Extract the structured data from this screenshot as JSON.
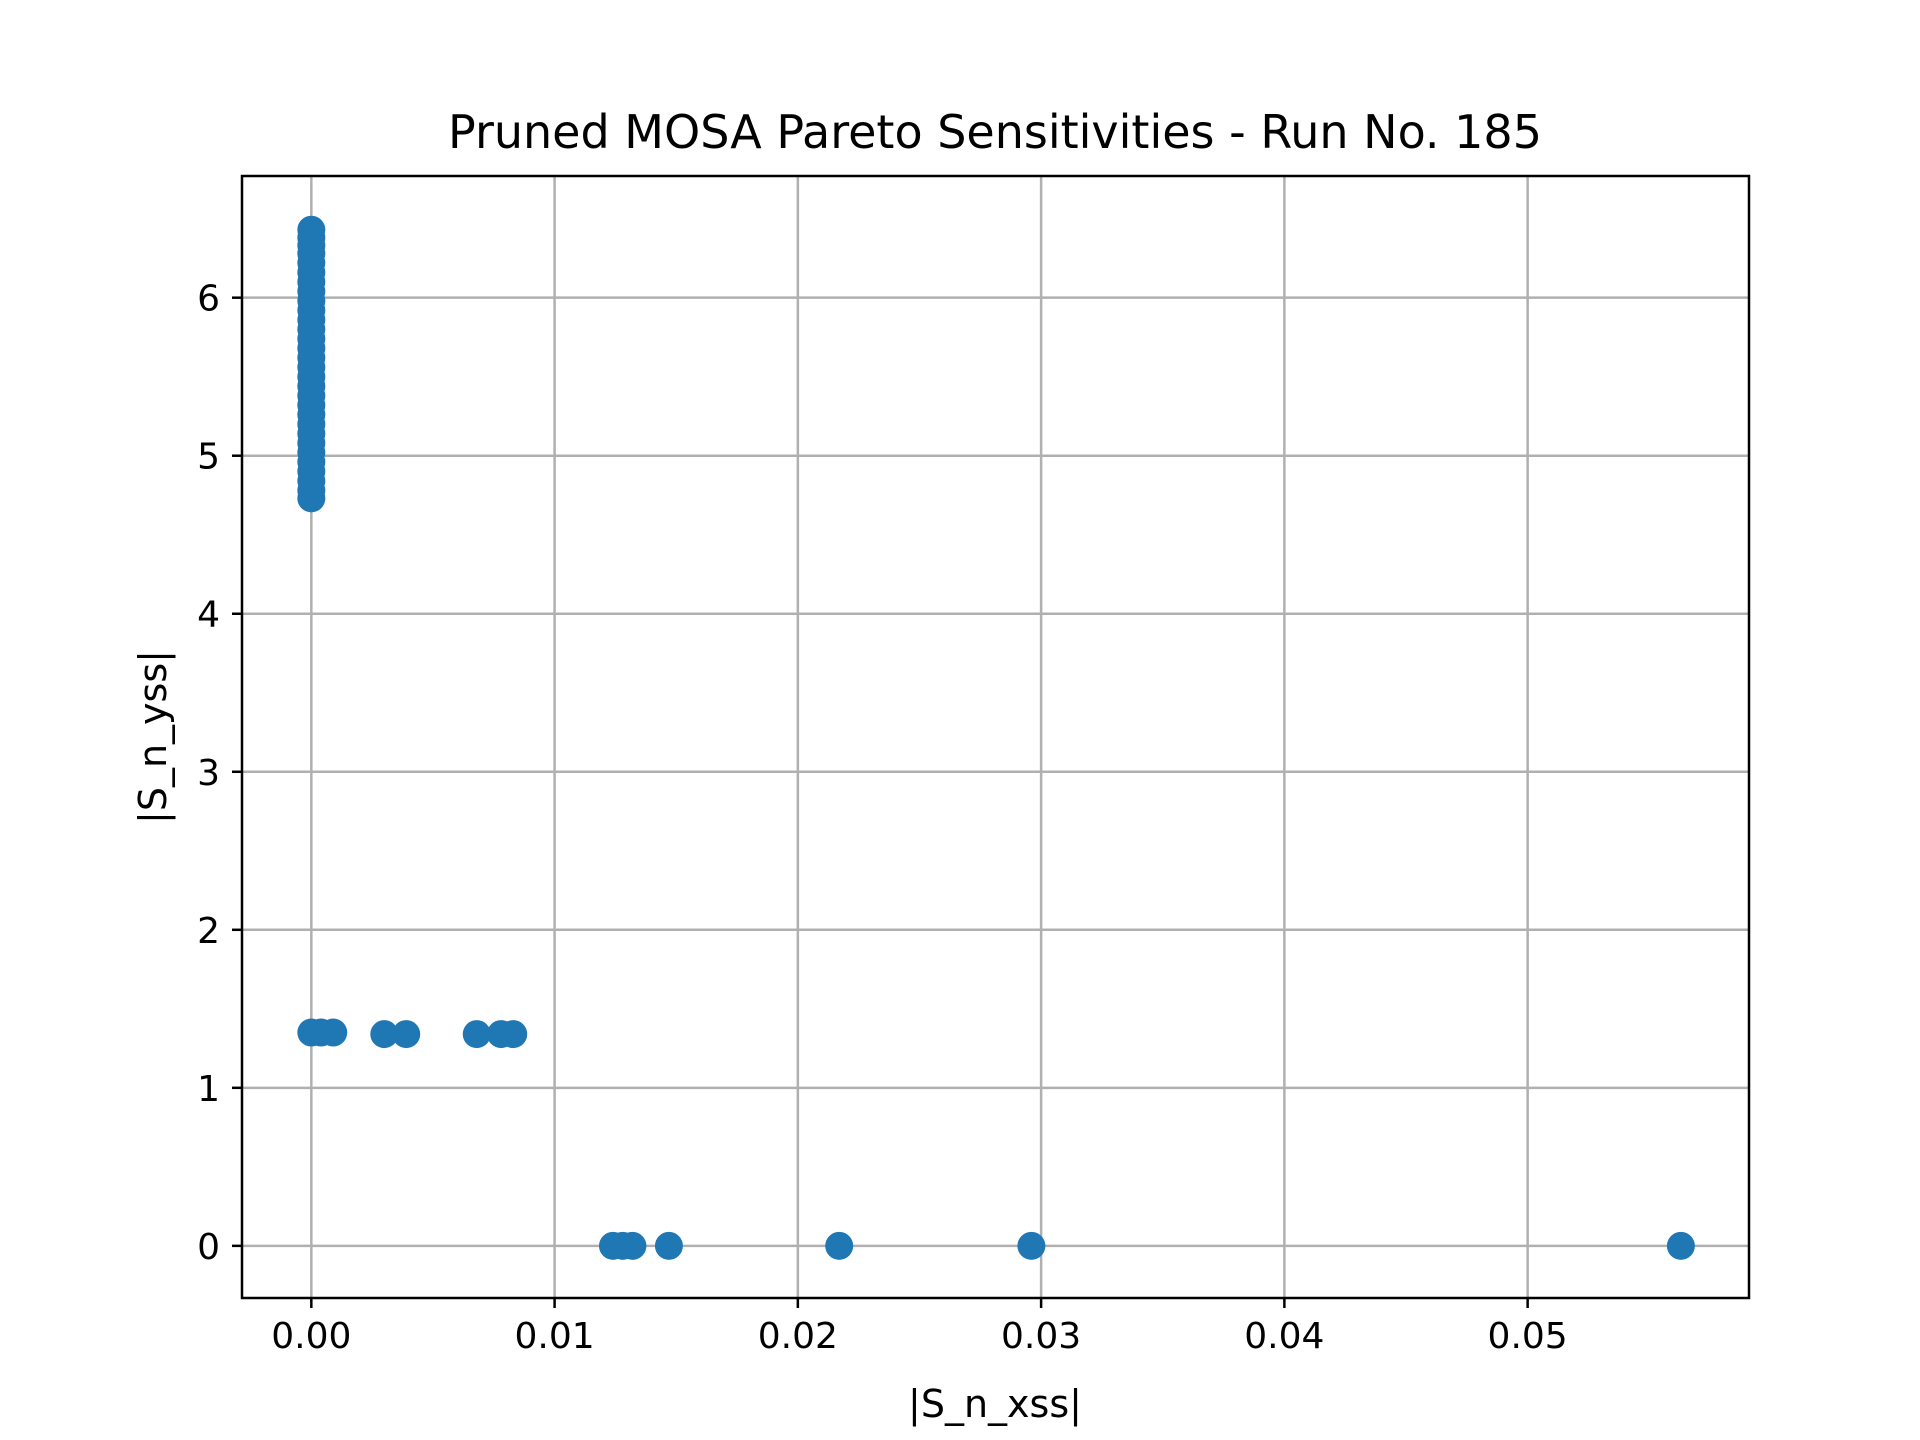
{
  "chart_data": {
    "type": "scatter",
    "title": "Pruned MOSA Pareto Sensitivities - Run No. 185",
    "xlabel": "|S_n_xss|",
    "ylabel": "|S_n_yss|",
    "xlim": [
      -0.00285,
      0.0591
    ],
    "ylim": [
      -0.33,
      6.77
    ],
    "xticks": [
      0.0,
      0.01,
      0.02,
      0.03,
      0.04,
      0.05
    ],
    "xtick_labels": [
      "0.00",
      "0.01",
      "0.02",
      "0.03",
      "0.04",
      "0.05"
    ],
    "yticks": [
      0,
      1,
      2,
      3,
      4,
      5,
      6
    ],
    "ytick_labels": [
      "0",
      "1",
      "2",
      "3",
      "4",
      "5",
      "6"
    ],
    "grid": true,
    "color": "#1f77b4",
    "points": [
      {
        "x": 0.0,
        "y": 6.43
      },
      {
        "x": 0.0,
        "y": 6.38
      },
      {
        "x": 0.0,
        "y": 6.33
      },
      {
        "x": 0.0,
        "y": 6.28
      },
      {
        "x": 0.0,
        "y": 6.22
      },
      {
        "x": 0.0,
        "y": 6.16
      },
      {
        "x": 0.0,
        "y": 6.1
      },
      {
        "x": 0.0,
        "y": 6.04
      },
      {
        "x": 0.0,
        "y": 5.98
      },
      {
        "x": 0.0,
        "y": 5.92
      },
      {
        "x": 0.0,
        "y": 5.86
      },
      {
        "x": 0.0,
        "y": 5.8
      },
      {
        "x": 0.0,
        "y": 5.74
      },
      {
        "x": 0.0,
        "y": 5.68
      },
      {
        "x": 0.0,
        "y": 5.62
      },
      {
        "x": 0.0,
        "y": 5.56
      },
      {
        "x": 0.0,
        "y": 5.5
      },
      {
        "x": 0.0,
        "y": 5.44
      },
      {
        "x": 0.0,
        "y": 5.38
      },
      {
        "x": 0.0,
        "y": 5.32
      },
      {
        "x": 0.0,
        "y": 5.26
      },
      {
        "x": 0.0,
        "y": 5.2
      },
      {
        "x": 0.0,
        "y": 5.14
      },
      {
        "x": 0.0,
        "y": 5.08
      },
      {
        "x": 0.0,
        "y": 5.02
      },
      {
        "x": 0.0,
        "y": 4.96
      },
      {
        "x": 0.0,
        "y": 4.9
      },
      {
        "x": 0.0,
        "y": 4.84
      },
      {
        "x": 0.0,
        "y": 4.78
      },
      {
        "x": 0.0,
        "y": 4.73
      },
      {
        "x": 0.0,
        "y": 1.35
      },
      {
        "x": 0.0004,
        "y": 1.35
      },
      {
        "x": 0.0009,
        "y": 1.35
      },
      {
        "x": 0.003,
        "y": 1.34
      },
      {
        "x": 0.0039,
        "y": 1.34
      },
      {
        "x": 0.0068,
        "y": 1.34
      },
      {
        "x": 0.0078,
        "y": 1.34
      },
      {
        "x": 0.0083,
        "y": 1.34
      },
      {
        "x": 0.0124,
        "y": 0.0
      },
      {
        "x": 0.0128,
        "y": 0.0
      },
      {
        "x": 0.0132,
        "y": 0.0
      },
      {
        "x": 0.0147,
        "y": 0.0
      },
      {
        "x": 0.0217,
        "y": 0.0
      },
      {
        "x": 0.0296,
        "y": 0.0
      },
      {
        "x": 0.0563,
        "y": 0.0
      }
    ]
  }
}
